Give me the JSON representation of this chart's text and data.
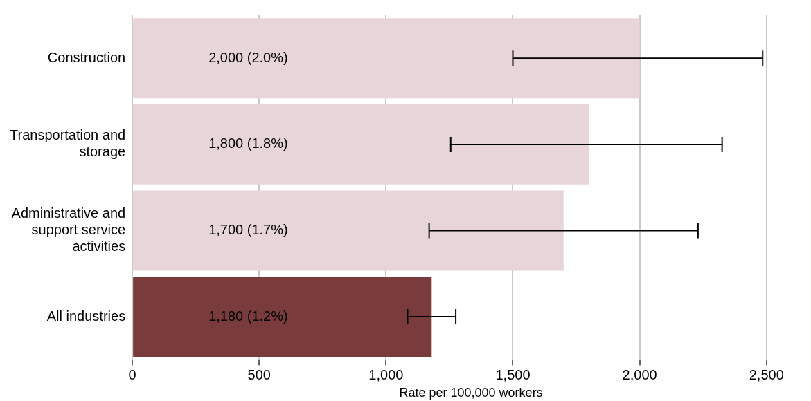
{
  "chart_data": {
    "type": "bar",
    "orientation": "horizontal",
    "xlabel": "Rate per 100,000 workers",
    "categories": [
      "Construction",
      "Transportation and storage",
      "Administrative and support service activities",
      "All industries"
    ],
    "values": [
      2000,
      1800,
      1700,
      1180
    ],
    "colors": [
      "#e8d5d8",
      "#e8d5d8",
      "#e8d5d8",
      "#7a3b3c"
    ],
    "errors": [
      [
        1500,
        2485
      ],
      [
        1255,
        2325
      ],
      [
        1170,
        2230
      ],
      [
        1085,
        1275
      ]
    ],
    "value_labels": [
      "2,000 (2.0%)",
      "1,800 (1.8%)",
      "1,700 (1.7%)",
      "1,180 (1.2%)"
    ],
    "xlim": [
      0,
      2670
    ],
    "xticks": [
      {
        "value": 0,
        "label": "0"
      },
      {
        "value": 500,
        "label": "500"
      },
      {
        "value": 1000,
        "label": "1,000"
      },
      {
        "value": 1500,
        "label": "1,500"
      },
      {
        "value": 2000,
        "label": "2,000"
      },
      {
        "value": 2500,
        "label": "2,500"
      }
    ],
    "grid": "x",
    "legend": false
  }
}
